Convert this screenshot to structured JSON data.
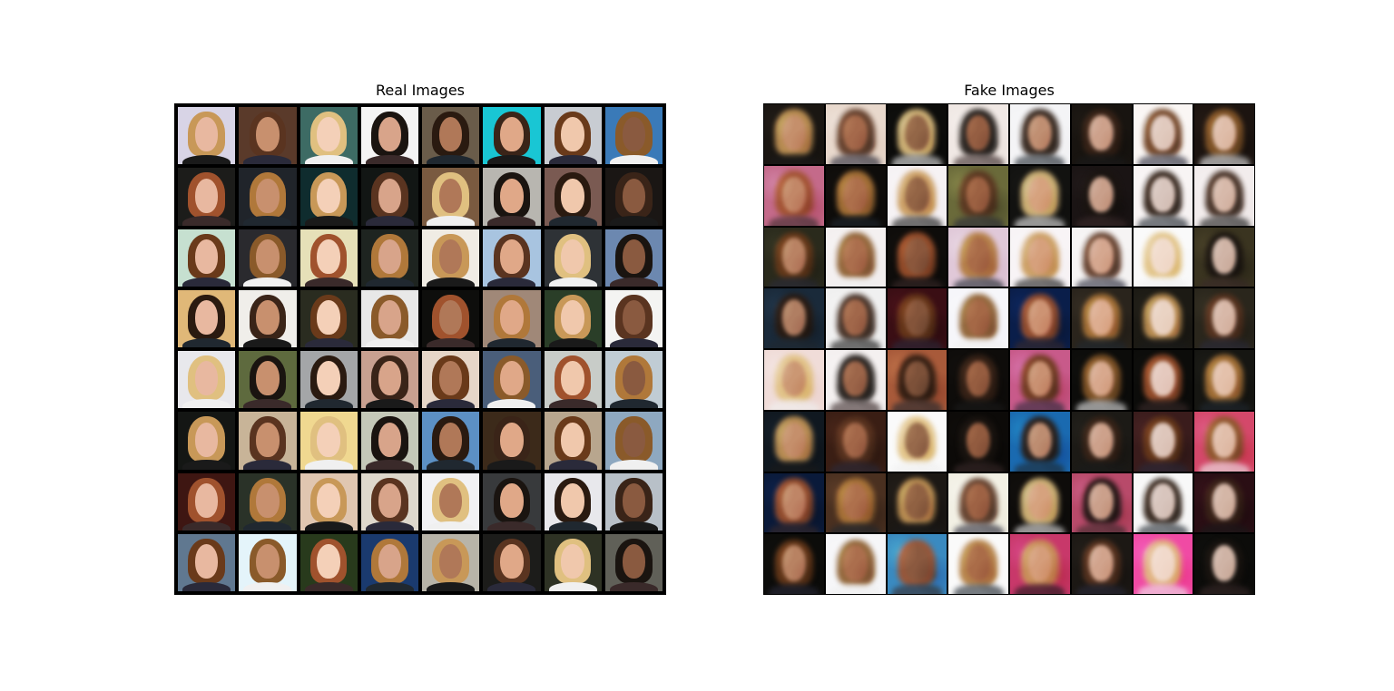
{
  "figure": {
    "panels": [
      {
        "title": "Real Images"
      },
      {
        "title": "Fake Images"
      }
    ]
  }
}
